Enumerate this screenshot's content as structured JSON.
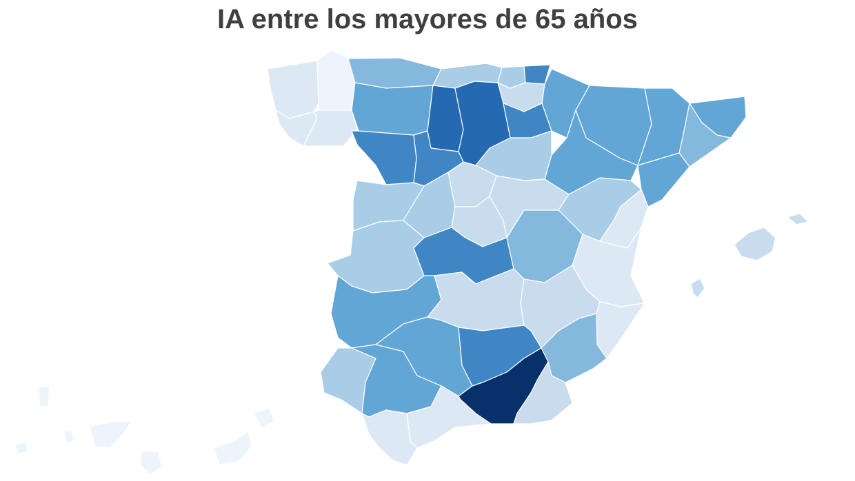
{
  "title": "IA entre los mayores de 65 años",
  "palette": {
    "l1": "#eef4fb",
    "l2": "#dce9f5",
    "l3": "#c9dcee",
    "l4": "#a9cde6",
    "l5": "#84b9dd",
    "l6": "#62a6d5",
    "l7": "#3e87c4",
    "l8": "#2469b1",
    "l9": "#08306b"
  },
  "regions": [
    {
      "name": "A Coruña",
      "level": "l2"
    },
    {
      "name": "Lugo",
      "level": "l1"
    },
    {
      "name": "Pontevedra",
      "level": "l2"
    },
    {
      "name": "Ourense",
      "level": "l2"
    },
    {
      "name": "Asturias",
      "level": "l5"
    },
    {
      "name": "Cantabria",
      "level": "l4"
    },
    {
      "name": "Vizcaya",
      "level": "l4"
    },
    {
      "name": "Guipúzcoa",
      "level": "l7"
    },
    {
      "name": "Álava",
      "level": "l3"
    },
    {
      "name": "Navarra",
      "level": "l6"
    },
    {
      "name": "León",
      "level": "l6"
    },
    {
      "name": "Palencia",
      "level": "l8"
    },
    {
      "name": "Burgos",
      "level": "l8"
    },
    {
      "name": "La Rioja",
      "level": "l7"
    },
    {
      "name": "Zamora",
      "level": "l7"
    },
    {
      "name": "Valladolid",
      "level": "l7"
    },
    {
      "name": "Soria",
      "level": "l4"
    },
    {
      "name": "Huesca",
      "level": "l6"
    },
    {
      "name": "Zaragoza",
      "level": "l6"
    },
    {
      "name": "Lleida",
      "level": "l6"
    },
    {
      "name": "Girona",
      "level": "l6"
    },
    {
      "name": "Barcelona",
      "level": "l5"
    },
    {
      "name": "Tarragona",
      "level": "l6"
    },
    {
      "name": "Salamanca",
      "level": "l4"
    },
    {
      "name": "Ávila",
      "level": "l4"
    },
    {
      "name": "Segovia",
      "level": "l3"
    },
    {
      "name": "Madrid",
      "level": "l3"
    },
    {
      "name": "Guadalajara",
      "level": "l3"
    },
    {
      "name": "Teruel",
      "level": "l4"
    },
    {
      "name": "Castellón",
      "level": "l2"
    },
    {
      "name": "Cáceres",
      "level": "l4"
    },
    {
      "name": "Toledo",
      "level": "l7"
    },
    {
      "name": "Cuenca",
      "level": "l5"
    },
    {
      "name": "Valencia",
      "level": "l2"
    },
    {
      "name": "Badajoz",
      "level": "l6"
    },
    {
      "name": "Ciudad Real",
      "level": "l3"
    },
    {
      "name": "Albacete",
      "level": "l3"
    },
    {
      "name": "Alicante",
      "level": "l2"
    },
    {
      "name": "Huelva",
      "level": "l4"
    },
    {
      "name": "Sevilla",
      "level": "l6"
    },
    {
      "name": "Córdoba",
      "level": "l6"
    },
    {
      "name": "Jaén",
      "level": "l7"
    },
    {
      "name": "Murcia",
      "level": "l5"
    },
    {
      "name": "Granada",
      "level": "l9"
    },
    {
      "name": "Almería",
      "level": "l3"
    },
    {
      "name": "Málaga",
      "level": "l2"
    },
    {
      "name": "Cádiz",
      "level": "l2"
    },
    {
      "name": "Mallorca",
      "level": "l3"
    },
    {
      "name": "Menorca",
      "level": "l3"
    },
    {
      "name": "Ibiza",
      "level": "l3"
    },
    {
      "name": "Canarias",
      "level": "l1"
    }
  ]
}
